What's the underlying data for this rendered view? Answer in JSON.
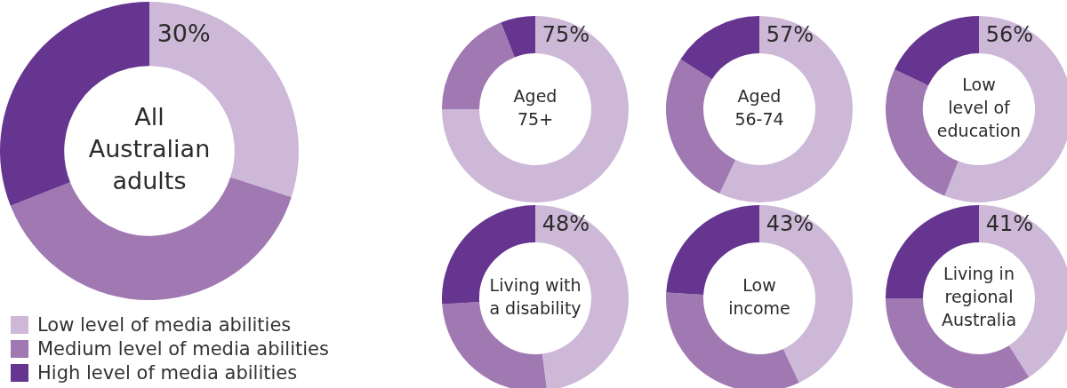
{
  "chart_data": [
    {
      "type": "donut",
      "title": "All\nAustralian\nadults",
      "categories": [
        "Low level of media abilities",
        "Medium level of media abilities",
        "High level of media abilities"
      ],
      "values": [
        30,
        39,
        31
      ],
      "colors": [
        "#cdb8d7",
        "#a078b2",
        "#65358f"
      ],
      "value_labels": [
        "30%",
        null,
        null
      ],
      "legend": "bottom"
    },
    {
      "type": "donut",
      "title": "Aged\n75+",
      "categories": [
        null,
        null,
        null
      ],
      "values": [
        75,
        19,
        6
      ],
      "colors": [
        "#cdb8d7",
        "#a078b2",
        "#65358f"
      ],
      "value_labels": [
        "75%",
        null,
        null
      ]
    },
    {
      "type": "donut",
      "title": "Aged\n56-74",
      "categories": [
        null,
        null,
        null
      ],
      "values": [
        57,
        27,
        16
      ],
      "colors": [
        "#cdb8d7",
        "#a078b2",
        "#65358f"
      ],
      "value_labels": [
        "57%",
        null,
        null
      ]
    },
    {
      "type": "donut",
      "title": "Low\nlevel of\neducation",
      "categories": [
        null,
        null,
        null
      ],
      "values": [
        56,
        26,
        18
      ],
      "colors": [
        "#cdb8d7",
        "#a078b2",
        "#65358f"
      ],
      "value_labels": [
        "56%",
        null,
        null
      ]
    },
    {
      "type": "donut",
      "title": "Living with\na disability",
      "categories": [
        null,
        null,
        null
      ],
      "values": [
        48,
        26,
        26
      ],
      "colors": [
        "#cdb8d7",
        "#a078b2",
        "#65358f"
      ],
      "value_labels": [
        "48%",
        null,
        null
      ]
    },
    {
      "type": "donut",
      "title": "Low\nincome",
      "categories": [
        null,
        null,
        null
      ],
      "values": [
        43,
        33,
        24
      ],
      "colors": [
        "#cdb8d7",
        "#a078b2",
        "#65358f"
      ],
      "value_labels": [
        "43%",
        null,
        null
      ]
    },
    {
      "type": "donut",
      "title": "Living in\nregional\nAustralia",
      "categories": [
        null,
        null,
        null
      ],
      "values": [
        41,
        34,
        25
      ],
      "colors": [
        "#cdb8d7",
        "#a078b2",
        "#65358f"
      ],
      "value_labels": [
        "41%",
        null,
        null
      ]
    }
  ]
}
